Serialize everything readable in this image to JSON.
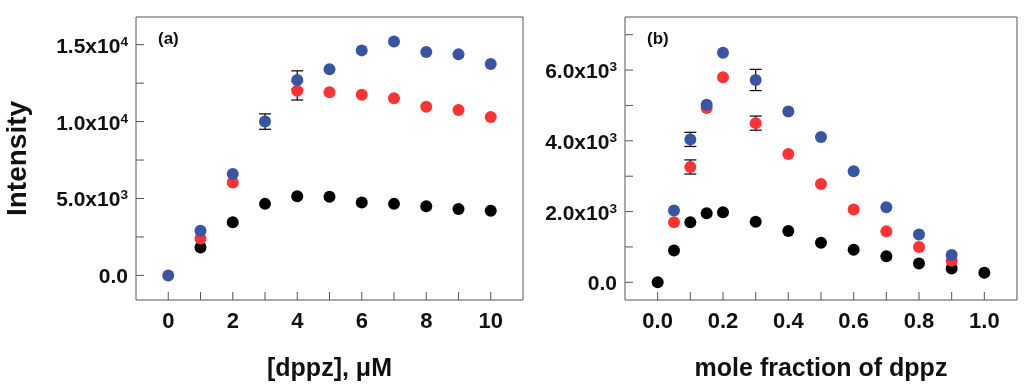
{
  "chart_data": [
    {
      "type": "scatter",
      "annotations": [
        "(a)"
      ],
      "xlabel": "[dppz], μM",
      "ylabel": "Intensity",
      "marker": "circle",
      "grid": false,
      "xlim": [
        -1,
        11
      ],
      "xticks": [
        0,
        {
          "value": 1,
          "label": null
        },
        2,
        {
          "value": 3,
          "label": null
        },
        4,
        {
          "value": 5,
          "label": null
        },
        6,
        {
          "value": 7,
          "label": null
        },
        8,
        {
          "value": 9,
          "label": null
        },
        10
      ],
      "ylim": [
        -1600,
        16800
      ],
      "yticks": [
        {
          "value": 0,
          "label": "0.0"
        },
        {
          "value": 2500,
          "label": null
        },
        {
          "value": 5000,
          "label": "5.0x10$^{3}$"
        },
        {
          "value": 7500,
          "label": null
        },
        {
          "value": 10000,
          "label": "1.0x10$^{4}$"
        },
        {
          "value": 12500,
          "label": null
        },
        {
          "value": 15000,
          "label": "1.5x10$^{4}$"
        }
      ],
      "x": [
        0,
        1,
        2,
        3,
        4,
        5,
        6,
        7,
        8,
        9,
        10
      ],
      "series": [
        {
          "color": "#000000",
          "values": [
            null,
            1820,
            3460,
            4650,
            5150,
            5110,
            4740,
            4650,
            4500,
            4310,
            4200
          ]
        },
        {
          "color": "#ff3333",
          "values": [
            null,
            2400,
            6040,
            null,
            12000,
            11900,
            11750,
            11510,
            10970,
            10760,
            10300
          ],
          "errors": [
            null,
            null,
            null,
            null,
            600,
            null,
            null,
            null,
            null,
            null,
            null
          ]
        },
        {
          "color": "#3a54a4",
          "values": [
            0,
            2900,
            6600,
            10000,
            12700,
            13400,
            14630,
            15200,
            14520,
            14370,
            13740
          ],
          "errors": [
            null,
            null,
            null,
            500,
            600,
            null,
            null,
            null,
            null,
            null,
            null
          ]
        }
      ]
    },
    {
      "type": "scatter",
      "annotations": [
        "(b)"
      ],
      "xlabel": "mole fraction of dppz",
      "marker": "circle",
      "grid": false,
      "xlim": [
        -0.1,
        1.1
      ],
      "xticks": [
        {
          "value": 0,
          "label": "0.0"
        },
        {
          "value": 0.1,
          "label": null
        },
        0.2,
        {
          "value": 0.3,
          "label": null
        },
        0.4,
        {
          "value": 0.5,
          "label": null
        },
        0.6,
        {
          "value": 0.7,
          "label": null
        },
        0.8,
        {
          "value": 0.9,
          "label": null
        },
        {
          "value": 1,
          "label": "1.0"
        }
      ],
      "ylim": [
        -500,
        7500
      ],
      "yticks": [
        {
          "value": 0,
          "label": "0.0"
        },
        {
          "value": 1000,
          "label": null
        },
        {
          "value": 2000,
          "label": "2.0x10$^{3}$"
        },
        {
          "value": 3000,
          "label": null
        },
        {
          "value": 4000,
          "label": "4.0x10$^{3}$"
        },
        {
          "value": 5000,
          "label": null
        },
        {
          "value": 6000,
          "label": "6.0x10$^{3}$"
        },
        {
          "value": 7000,
          "label": null
        }
      ],
      "x": [
        0,
        0.05,
        0.1,
        0.15,
        0.2,
        0.3,
        0.4,
        0.5,
        0.6,
        0.7,
        0.8,
        0.9,
        1.0
      ],
      "series": [
        {
          "color": "#000000",
          "values": [
            0,
            900,
            1700,
            1950,
            1980,
            1710,
            1450,
            1120,
            920,
            740,
            530,
            390,
            270
          ]
        },
        {
          "color": "#ff3333",
          "values": [
            null,
            1700,
            3260,
            4930,
            5800,
            4500,
            3630,
            2780,
            2060,
            1440,
            1000,
            610,
            null
          ],
          "errors": [
            null,
            null,
            200,
            null,
            null,
            200,
            null,
            null,
            null,
            null,
            null,
            null,
            null
          ]
        },
        {
          "color": "#3a54a4",
          "values": [
            null,
            2030,
            4040,
            5020,
            6490,
            5720,
            4830,
            4110,
            3140,
            2120,
            1350,
            770,
            null
          ],
          "errors": [
            null,
            null,
            200,
            null,
            null,
            300,
            null,
            null,
            null,
            null,
            null,
            null,
            null
          ]
        }
      ]
    }
  ]
}
